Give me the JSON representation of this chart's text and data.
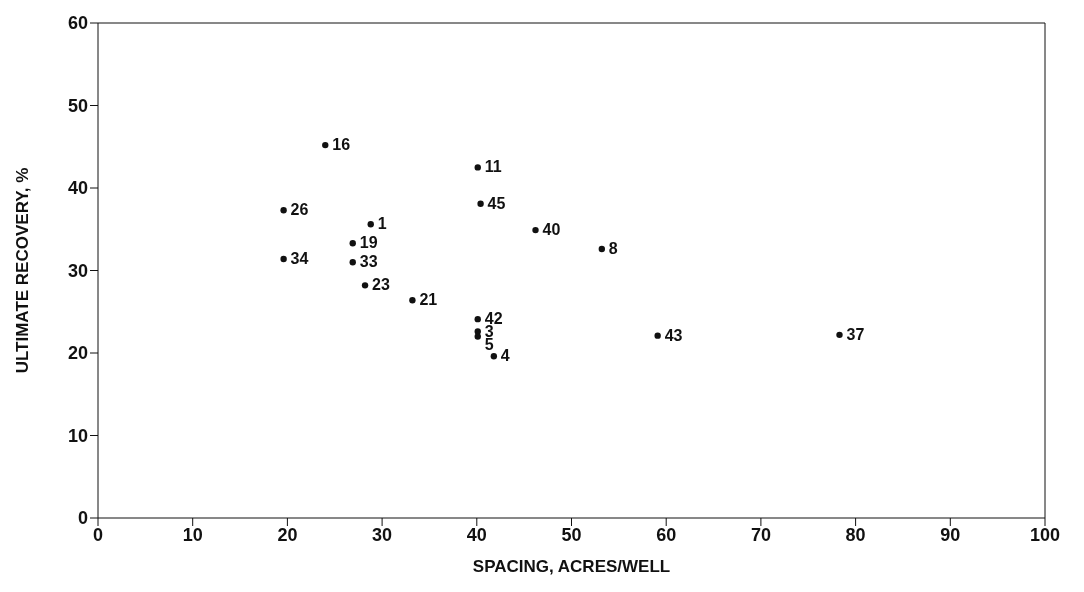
{
  "chart_data": {
    "type": "scatter",
    "xlabel": "SPACING, ACRES/WELL",
    "ylabel": "ULTIMATE RECOVERY, %",
    "x": [
      24.0,
      40.1,
      19.6,
      28.8,
      40.4,
      46.2,
      53.2,
      26.9,
      19.6,
      26.9,
      28.2,
      33.2,
      40.1,
      40.1,
      40.1,
      41.8,
      59.1,
      78.3
    ],
    "series": [
      {
        "color": "#111111",
        "values": [
          45.2,
          42.5,
          37.3,
          35.6,
          38.1,
          34.9,
          32.6,
          33.3,
          31.4,
          31.0,
          28.2,
          26.4,
          24.1,
          22.6,
          22.0,
          19.6,
          22.1,
          22.2
        ]
      }
    ],
    "annotations": [
      {
        "text": "16",
        "x": 24.0,
        "y": 45.2
      },
      {
        "text": "11",
        "x": 40.1,
        "y": 42.5
      },
      {
        "text": "26",
        "x": 19.6,
        "y": 37.3
      },
      {
        "text": "1",
        "x": 28.8,
        "y": 35.6
      },
      {
        "text": "45",
        "x": 40.4,
        "y": 38.1
      },
      {
        "text": "40",
        "x": 46.2,
        "y": 34.9
      },
      {
        "text": "8",
        "x": 53.2,
        "y": 32.6
      },
      {
        "text": "19",
        "x": 26.9,
        "y": 33.3
      },
      {
        "text": "34",
        "x": 19.6,
        "y": 31.4
      },
      {
        "text": "33",
        "x": 26.9,
        "y": 31.0
      },
      {
        "text": "23",
        "x": 28.2,
        "y": 28.2
      },
      {
        "text": "21",
        "x": 33.2,
        "y": 26.4
      },
      {
        "text": "42",
        "x": 40.1,
        "y": 24.1
      },
      {
        "text": "3",
        "x": 40.1,
        "y": 22.6
      },
      {
        "text": "5",
        "x": 40.1,
        "y": 22.0
      },
      {
        "text": "4",
        "x": 41.8,
        "y": 19.6
      },
      {
        "text": "43",
        "x": 59.1,
        "y": 22.1
      },
      {
        "text": "37",
        "x": 78.3,
        "y": 22.2
      }
    ],
    "xlim": [
      0,
      100
    ],
    "xticks": [
      0,
      10,
      20,
      30,
      40,
      50,
      60,
      70,
      80,
      90,
      100
    ],
    "ylim": [
      0,
      60
    ],
    "yticks": [
      0,
      10,
      20,
      30,
      40,
      50,
      60
    ],
    "grid": false,
    "legend": false,
    "marker": "circle"
  }
}
